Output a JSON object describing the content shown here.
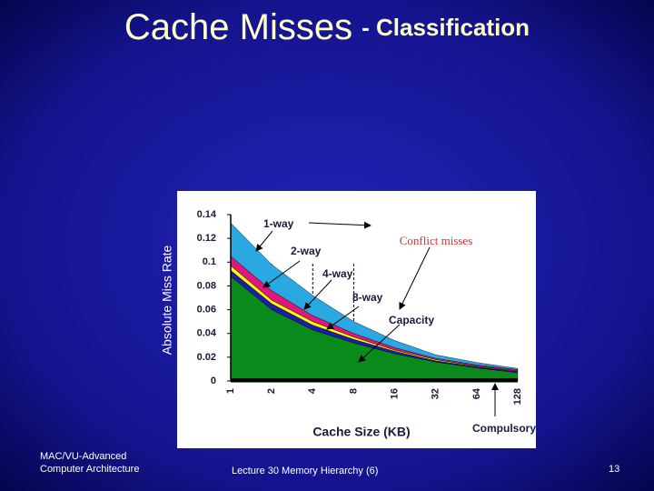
{
  "slide": {
    "title_main": "Cache Misses",
    "title_sub": "- Classification",
    "footer": {
      "left_lines": [
        "MAC/VU-Advanced",
        "Computer Architecture"
      ],
      "center": "Lecture 30 Memory Hierarchy (6)",
      "page": "13"
    }
  },
  "chart_data": {
    "type": "stacked_area",
    "x_label": "Cache Size (KB)",
    "y_label": "Absolute Miss Rate",
    "annotation": "Conflict misses",
    "categories": [
      "1",
      "2",
      "4",
      "8",
      "16",
      "32",
      "64",
      "128"
    ],
    "series": [
      {
        "name": "Compulsory",
        "color": "#000000",
        "values": [
          0.002,
          0.002,
          0.002,
          0.002,
          0.002,
          0.002,
          0.002,
          0.002
        ]
      },
      {
        "name": "Capacity",
        "color": "#0b8a1c",
        "values": [
          0.086,
          0.058,
          0.041,
          0.03,
          0.021,
          0.014,
          0.009,
          0.005
        ]
      },
      {
        "name": "8-way",
        "color": "#1c1caf",
        "values": [
          0.005,
          0.005,
          0.004,
          0.003,
          0.002,
          0.001,
          0.001,
          0.001
        ]
      },
      {
        "name": "4-way",
        "color": "#ffff00",
        "values": [
          0.004,
          0.003,
          0.003,
          0.002,
          0.001,
          0.001,
          0.0005,
          0.0005
        ]
      },
      {
        "name": "2-way",
        "color": "#e0187c",
        "values": [
          0.008,
          0.008,
          0.005,
          0.003,
          0.002,
          0.001,
          0.001,
          0.001
        ]
      },
      {
        "name": "1-way",
        "color": "#2aa8e2",
        "values": [
          0.028,
          0.022,
          0.017,
          0.01,
          0.006,
          0.003,
          0.002,
          0.001
        ]
      }
    ],
    "ylim": [
      0,
      0.14
    ],
    "yticks": [
      0,
      0.02,
      0.04,
      0.06,
      0.08,
      0.1,
      0.12,
      0.14
    ]
  }
}
